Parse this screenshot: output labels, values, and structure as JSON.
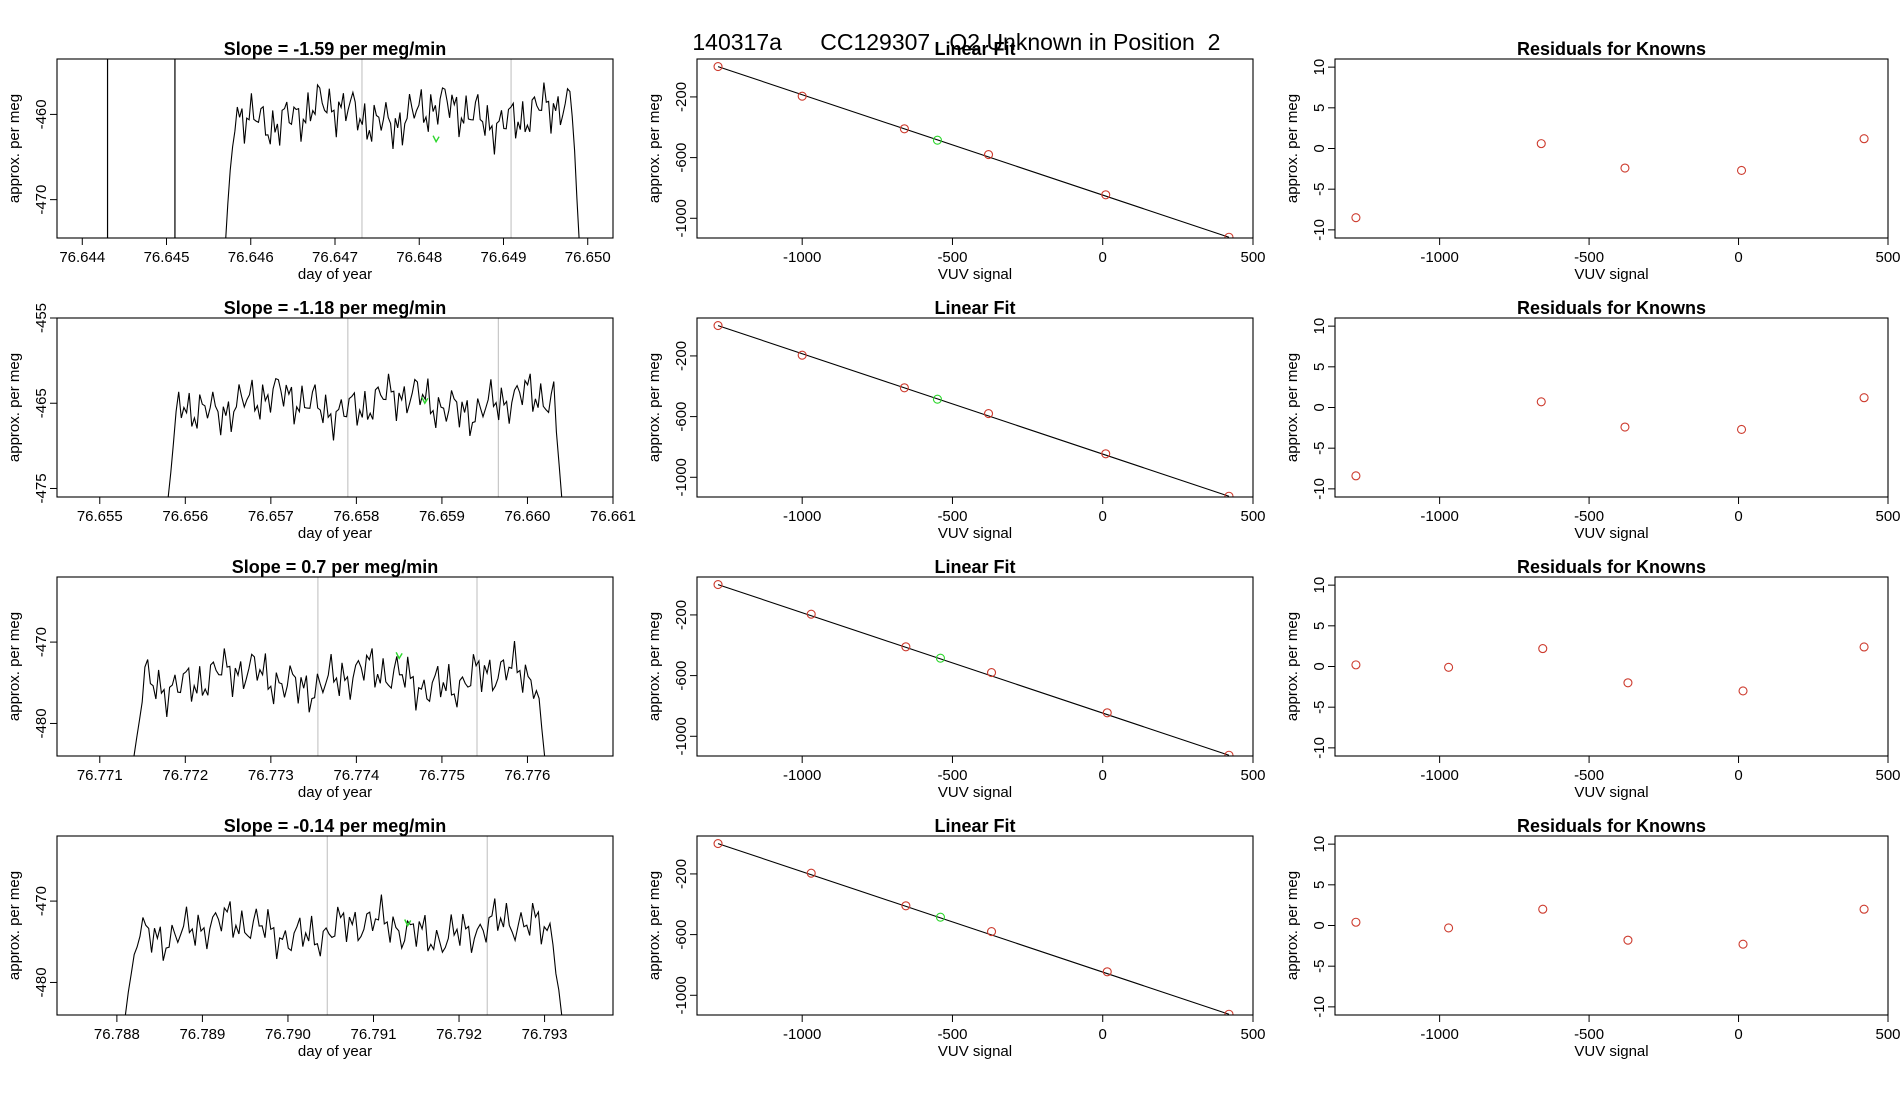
{
  "page": {
    "title": "140317a      CC129307   O2 Unknown in Position  2"
  },
  "colors": {
    "trace": "#000000",
    "fit_line": "#000000",
    "known_points": "#cd3b2e",
    "unknown_point": "#2bd62b",
    "marker_lines": "#c8c8c8",
    "frame": "#000000"
  },
  "chart_data": [
    {
      "type": "line",
      "panel": "timeseries",
      "row": 1,
      "title": "Slope =  -1.59  per meg/min",
      "xlabel": "day of year",
      "ylabel": "approx. per meg",
      "xlim": [
        76.6437,
        76.6503
      ],
      "ylim": [
        -474.5,
        -453.5
      ],
      "xticks": [
        76.644,
        76.645,
        76.646,
        76.647,
        76.648,
        76.649,
        76.65
      ],
      "xtick_labels": [
        "76.644",
        "76.645",
        "76.646",
        "76.647",
        "76.648",
        "76.649",
        "76.650"
      ],
      "yticks": [
        -460,
        -470
      ],
      "ytick_labels": [
        "-460",
        "-470"
      ],
      "vlines_dark": [
        76.6443,
        76.6451
      ],
      "vlines_light": [
        76.64732,
        76.64909
      ],
      "trace_start": 76.6457,
      "trace_end": 76.6499,
      "trace_level": -460,
      "trace_amp": 2.8,
      "ramp_from": -475,
      "unknown_point": [
        76.6482,
        -463.2
      ]
    },
    {
      "type": "scatter",
      "panel": "linear_fit",
      "row": 1,
      "title": "Linear Fit",
      "xlabel": "VUV signal",
      "ylabel": "approx. per meg",
      "xlim": [
        -1350,
        500
      ],
      "ylim": [
        -1130,
        50
      ],
      "xticks": [
        -1000,
        -500,
        0,
        500
      ],
      "xtick_labels": [
        "-1000",
        "-500",
        "0",
        "500"
      ],
      "yticks": [
        -200,
        -600,
        -1000
      ],
      "ytick_labels": [
        "-200",
        "-600",
        "-1000"
      ],
      "knowns": [
        [
          -1280,
          0
        ],
        [
          -1000,
          -195
        ],
        [
          -660,
          -410
        ],
        [
          -380,
          -580
        ],
        [
          10,
          -845
        ],
        [
          420,
          -1125
        ]
      ],
      "unknown": [
        -550,
        -485
      ],
      "fit": [
        [
          -1280,
          0
        ],
        [
          420,
          -1125
        ]
      ]
    },
    {
      "type": "scatter",
      "panel": "residuals",
      "row": 1,
      "title": "Residuals for Knowns",
      "xlabel": "VUV signal",
      "ylabel": "approx. per meg",
      "xlim": [
        -1350,
        500
      ],
      "ylim": [
        -11,
        11
      ],
      "xticks": [
        -1000,
        -500,
        0,
        500
      ],
      "xtick_labels": [
        "-1000",
        "-500",
        "0",
        "500"
      ],
      "yticks": [
        10,
        5,
        0,
        -5,
        -10
      ],
      "ytick_labels": [
        "10",
        "5",
        "0",
        "-5",
        "-10"
      ],
      "points": [
        [
          -1280,
          -8.5
        ],
        [
          -660,
          0.6
        ],
        [
          -380,
          -2.4
        ],
        [
          10,
          -2.7
        ],
        [
          420,
          1.2
        ]
      ]
    },
    {
      "type": "line",
      "panel": "timeseries",
      "row": 2,
      "title": "Slope =  -1.18  per meg/min",
      "xlabel": "day of year",
      "ylabel": "approx. per meg",
      "xlim": [
        76.6545,
        76.661
      ],
      "ylim": [
        -476,
        -455
      ],
      "xticks": [
        76.655,
        76.656,
        76.657,
        76.658,
        76.659,
        76.66,
        76.661
      ],
      "xtick_labels": [
        "76.655",
        "76.656",
        "76.657",
        "76.658",
        "76.659",
        "76.660",
        "76.661"
      ],
      "yticks": [
        -455,
        -465,
        -475
      ],
      "ytick_labels": [
        "-455",
        "-465",
        "-475"
      ],
      "vlines_dark": [],
      "vlines_light": [
        76.6579,
        76.65966
      ],
      "trace_start": 76.6558,
      "trace_end": 76.6604,
      "trace_level": -465,
      "trace_amp": 2.6,
      "ramp_from": -476,
      "unknown_point": [
        76.6588,
        -465
      ]
    },
    {
      "type": "scatter",
      "panel": "linear_fit",
      "row": 2,
      "title": "Linear Fit",
      "xlabel": "VUV signal",
      "ylabel": "approx. per meg",
      "xlim": [
        -1350,
        500
      ],
      "ylim": [
        -1130,
        50
      ],
      "xticks": [
        -1000,
        -500,
        0,
        500
      ],
      "xtick_labels": [
        "-1000",
        "-500",
        "0",
        "500"
      ],
      "yticks": [
        -200,
        -600,
        -1000
      ],
      "ytick_labels": [
        "-200",
        "-600",
        "-1000"
      ],
      "knowns": [
        [
          -1280,
          0
        ],
        [
          -1000,
          -195
        ],
        [
          -660,
          -410
        ],
        [
          -380,
          -580
        ],
        [
          10,
          -845
        ],
        [
          420,
          -1125
        ]
      ],
      "unknown": [
        -550,
        -485
      ],
      "fit": [
        [
          -1280,
          0
        ],
        [
          420,
          -1125
        ]
      ]
    },
    {
      "type": "scatter",
      "panel": "residuals",
      "row": 2,
      "title": "Residuals for Knowns",
      "xlabel": "VUV signal",
      "ylabel": "approx. per meg",
      "xlim": [
        -1350,
        500
      ],
      "ylim": [
        -11,
        11
      ],
      "xticks": [
        -1000,
        -500,
        0,
        500
      ],
      "xtick_labels": [
        "-1000",
        "-500",
        "0",
        "500"
      ],
      "yticks": [
        10,
        5,
        0,
        -5,
        -10
      ],
      "ytick_labels": [
        "10",
        "5",
        "0",
        "-5",
        "-10"
      ],
      "points": [
        [
          -1280,
          -8.4
        ],
        [
          -660,
          0.7
        ],
        [
          -380,
          -2.4
        ],
        [
          10,
          -2.7
        ],
        [
          420,
          1.2
        ]
      ]
    },
    {
      "type": "line",
      "panel": "timeseries",
      "row": 3,
      "title": "Slope =  0.7  per meg/min",
      "xlabel": "day of year",
      "ylabel": "approx. per meg",
      "xlim": [
        76.7705,
        76.777
      ],
      "ylim": [
        -484,
        -462
      ],
      "xticks": [
        76.771,
        76.772,
        76.773,
        76.774,
        76.775,
        76.776
      ],
      "xtick_labels": [
        "76.771",
        "76.772",
        "76.773",
        "76.774",
        "76.775",
        "76.776"
      ],
      "yticks": [
        -470,
        -480
      ],
      "ytick_labels": [
        "-470",
        "-480"
      ],
      "vlines_dark": [],
      "vlines_light": [
        76.77355,
        76.77541
      ],
      "trace_start": 76.7714,
      "trace_end": 76.7762,
      "trace_level": -474.5,
      "trace_amp": 2.8,
      "ramp_from": -484,
      "unknown_point": [
        76.7745,
        -472
      ]
    },
    {
      "type": "scatter",
      "panel": "linear_fit",
      "row": 3,
      "title": "Linear Fit",
      "xlabel": "VUV signal",
      "ylabel": "approx. per meg",
      "xlim": [
        -1350,
        500
      ],
      "ylim": [
        -1130,
        50
      ],
      "xticks": [
        -1000,
        -500,
        0,
        500
      ],
      "xtick_labels": [
        "-1000",
        "-500",
        "0",
        "500"
      ],
      "yticks": [
        -200,
        -600,
        -1000
      ],
      "ytick_labels": [
        "-200",
        "-600",
        "-1000"
      ],
      "knowns": [
        [
          -1280,
          0
        ],
        [
          -970,
          -195
        ],
        [
          -655,
          -410
        ],
        [
          -370,
          -580
        ],
        [
          15,
          -845
        ],
        [
          420,
          -1125
        ]
      ],
      "unknown": [
        -540,
        -485
      ],
      "fit": [
        [
          -1280,
          0
        ],
        [
          420,
          -1125
        ]
      ]
    },
    {
      "type": "scatter",
      "panel": "residuals",
      "row": 3,
      "title": "Residuals for Knowns",
      "xlabel": "VUV signal",
      "ylabel": "approx. per meg",
      "xlim": [
        -1350,
        500
      ],
      "ylim": [
        -11,
        11
      ],
      "xticks": [
        -1000,
        -500,
        0,
        500
      ],
      "xtick_labels": [
        "-1000",
        "-500",
        "0",
        "500"
      ],
      "yticks": [
        10,
        5,
        0,
        -5,
        -10
      ],
      "ytick_labels": [
        "10",
        "5",
        "0",
        "-5",
        "-10"
      ],
      "points": [
        [
          -1280,
          0.2
        ],
        [
          -970,
          -0.1
        ],
        [
          -655,
          2.2
        ],
        [
          -370,
          -2.0
        ],
        [
          15,
          -3.0
        ],
        [
          420,
          2.4
        ]
      ]
    },
    {
      "type": "line",
      "panel": "timeseries",
      "row": 4,
      "title": "Slope =  -0.14  per meg/min",
      "xlabel": "day of year",
      "ylabel": "approx. per meg",
      "xlim": [
        76.7873,
        76.7938
      ],
      "ylim": [
        -484,
        -462
      ],
      "xticks": [
        76.788,
        76.789,
        76.79,
        76.791,
        76.792,
        76.793
      ],
      "xtick_labels": [
        "76.788",
        "76.789",
        "76.790",
        "76.791",
        "76.792",
        "76.793"
      ],
      "yticks": [
        -470,
        -480
      ],
      "ytick_labels": [
        "-470",
        "-480"
      ],
      "vlines_dark": [],
      "vlines_light": [
        76.79046,
        76.79233
      ],
      "trace_start": 76.7881,
      "trace_end": 76.7932,
      "trace_level": -473.5,
      "trace_amp": 2.6,
      "ramp_from": -484,
      "unknown_point": [
        76.7914,
        -473
      ]
    },
    {
      "type": "scatter",
      "panel": "linear_fit",
      "row": 4,
      "title": "Linear Fit",
      "xlabel": "VUV signal",
      "ylabel": "approx. per meg",
      "xlim": [
        -1350,
        500
      ],
      "ylim": [
        -1130,
        50
      ],
      "xticks": [
        -1000,
        -500,
        0,
        500
      ],
      "xtick_labels": [
        "-1000",
        "-500",
        "0",
        "500"
      ],
      "yticks": [
        -200,
        -600,
        -1000
      ],
      "ytick_labels": [
        "-200",
        "-600",
        "-1000"
      ],
      "knowns": [
        [
          -1280,
          0
        ],
        [
          -970,
          -195
        ],
        [
          -655,
          -410
        ],
        [
          -370,
          -580
        ],
        [
          15,
          -845
        ],
        [
          420,
          -1125
        ]
      ],
      "unknown": [
        -540,
        -485
      ],
      "fit": [
        [
          -1280,
          0
        ],
        [
          420,
          -1125
        ]
      ]
    },
    {
      "type": "scatter",
      "panel": "residuals",
      "row": 4,
      "title": "Residuals for Knowns",
      "xlabel": "VUV signal",
      "ylabel": "approx. per meg",
      "xlim": [
        -1350,
        500
      ],
      "ylim": [
        -11,
        11
      ],
      "xticks": [
        -1000,
        -500,
        0,
        500
      ],
      "xtick_labels": [
        "-1000",
        "-500",
        "0",
        "500"
      ],
      "yticks": [
        10,
        5,
        0,
        -5,
        -10
      ],
      "ytick_labels": [
        "10",
        "5",
        "0",
        "-5",
        "-10"
      ],
      "points": [
        [
          -1280,
          0.4
        ],
        [
          -970,
          -0.3
        ],
        [
          -655,
          2.0
        ],
        [
          -370,
          -1.8
        ],
        [
          15,
          -2.3
        ],
        [
          420,
          2.0
        ]
      ]
    }
  ]
}
